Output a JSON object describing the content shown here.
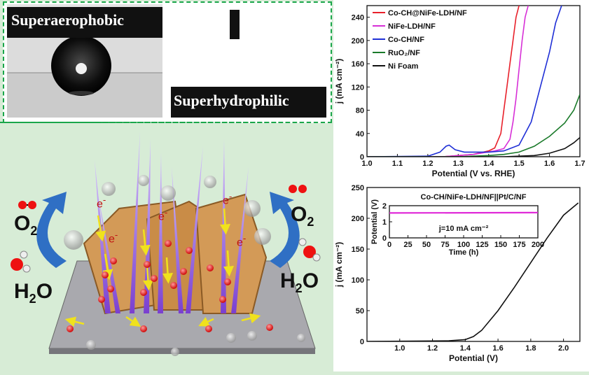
{
  "photo_panel": {
    "left_label": "Superaerophobic",
    "right_label": "Superhydrophilic"
  },
  "schematic": {
    "o2_left": "O",
    "o2_left_sub": "2",
    "o2_right": "O",
    "o2_right_sub": "2",
    "h2o_left": "H",
    "h2o_left_sub": "2",
    "h2o_left_tail": "O",
    "h2o_right": "H",
    "h2o_right_sub": "2",
    "h2o_right_tail": "O",
    "electron_label": "e",
    "electron_sup": "-"
  },
  "chart_data": [
    {
      "type": "line",
      "xlabel": "Potential (V vs. RHE)",
      "ylabel": "j (mA cm⁻²)",
      "xlim": [
        1.0,
        1.7
      ],
      "ylim": [
        0,
        260
      ],
      "xticks": [
        "1.0",
        "1.1",
        "1.2",
        "1.3",
        "1.4",
        "1.5",
        "1.6",
        "1.7"
      ],
      "yticks": [
        "0",
        "40",
        "80",
        "120",
        "160",
        "200",
        "240"
      ],
      "legend_position": "top-left",
      "series": [
        {
          "name": "Co-CH@NiFe-LDH/NF",
          "color": "#e8202a",
          "x": [
            1.0,
            1.25,
            1.35,
            1.4,
            1.42,
            1.44,
            1.45,
            1.46,
            1.47,
            1.48,
            1.49,
            1.5
          ],
          "y": [
            0,
            0,
            4,
            10,
            15,
            40,
            80,
            120,
            160,
            200,
            240,
            260
          ]
        },
        {
          "name": "NiFe-LDH/NF",
          "color": "#d72fd7",
          "x": [
            1.0,
            1.25,
            1.35,
            1.42,
            1.45,
            1.47,
            1.48,
            1.49,
            1.5,
            1.51,
            1.52,
            1.53
          ],
          "y": [
            0,
            0,
            4,
            10,
            14,
            30,
            60,
            100,
            150,
            200,
            240,
            260
          ]
        },
        {
          "name": "Co-CH/NF",
          "color": "#1f2fd6",
          "x": [
            1.0,
            1.2,
            1.24,
            1.26,
            1.27,
            1.29,
            1.32,
            1.4,
            1.45,
            1.5,
            1.54,
            1.57,
            1.6,
            1.62,
            1.64
          ],
          "y": [
            0,
            1,
            8,
            18,
            20,
            12,
            8,
            8,
            10,
            20,
            60,
            120,
            180,
            230,
            260
          ]
        },
        {
          "name": "RuO₂/NF",
          "color": "#1a7a2a",
          "x": [
            1.0,
            1.3,
            1.4,
            1.45,
            1.5,
            1.55,
            1.6,
            1.65,
            1.68,
            1.7
          ],
          "y": [
            0,
            0,
            2,
            4,
            8,
            18,
            35,
            58,
            80,
            107
          ]
        },
        {
          "name": "Ni Foam",
          "color": "#111111",
          "x": [
            1.0,
            1.45,
            1.5,
            1.55,
            1.6,
            1.65,
            1.68,
            1.7
          ],
          "y": [
            0,
            0,
            1,
            2,
            6,
            14,
            24,
            33
          ]
        }
      ]
    },
    {
      "type": "line",
      "title": "Co-CH/NiFe-LDH/NF||Pt/C/NF",
      "xlabel": "Potential (V)",
      "ylabel": "j (mA cm⁻²)",
      "xlim": [
        0.8,
        2.1
      ],
      "ylim": [
        0,
        250
      ],
      "xticks": [
        "1.0",
        "1.2",
        "1.4",
        "1.6",
        "1.8",
        "2.0"
      ],
      "yticks": [
        "0",
        "50",
        "100",
        "150",
        "200",
        "250"
      ],
      "series": [
        {
          "color": "#111111",
          "x": [
            0.8,
            1.3,
            1.4,
            1.45,
            1.5,
            1.6,
            1.7,
            1.8,
            1.9,
            2.0,
            2.09
          ],
          "y": [
            0,
            1,
            3,
            8,
            18,
            50,
            88,
            128,
            168,
            205,
            225
          ]
        }
      ],
      "inset": {
        "type": "line",
        "xlabel": "Time (h)",
        "ylabel": "Potential (V)",
        "xlim": [
          0,
          200
        ],
        "ylim": [
          0,
          2
        ],
        "xticks": [
          "0",
          "25",
          "50",
          "75",
          "100",
          "125",
          "150",
          "175",
          "200"
        ],
        "yticks": [
          "0",
          "1",
          "2"
        ],
        "annotation": "j=10 mA cm⁻²",
        "series": [
          {
            "color": "#e02ad8",
            "x": [
              0,
              200
            ],
            "y": [
              1.55,
              1.57
            ]
          }
        ]
      }
    }
  ]
}
